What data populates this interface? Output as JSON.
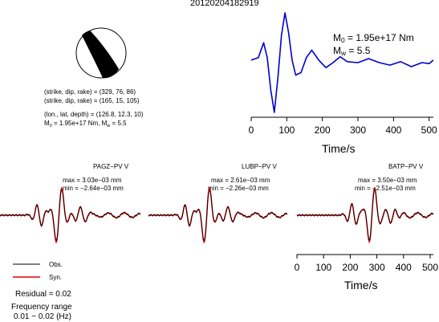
{
  "figure": {
    "title": "20120204182919",
    "mechanism": {
      "line1": "(strike, dip, rake) = (329, 76, 86)",
      "line2": "(strike, dip, rake) = (165, 15, 105)",
      "line3": "(lon., lat, depth) = (126.8, 12.3, 10)",
      "line4": "M",
      "line4_sub": "0",
      "line4_rest": " = 1.95e+17 Nm, M",
      "line4_sub2": "w",
      "line4_end": " = 5.5"
    },
    "stf_label": {
      "mo_prefix": "M",
      "mo_sub": "0",
      "mo_value": " = 1.95e+17 Nm",
      "mw_prefix": "M",
      "mw_sub": "w",
      "mw_value": " = 5.5"
    },
    "stations": [
      {
        "name": "PAGZ−PV V",
        "max": "max = 3.03e−03 mm",
        "min": "min = −2.64e−03 mm"
      },
      {
        "name": "LUBP−PV V",
        "max": "max = 2.61e−03 mm",
        "min": "min = −2.26e−03 mm"
      },
      {
        "name": "BATP−PV V",
        "max": "max = 3.50e−03 mm",
        "min": "min = −2.51e−03 mm"
      }
    ],
    "legend": {
      "obs": "Obs.",
      "syn": "Syn."
    },
    "residual": "Residual = 0.02",
    "freq_label": "Frequency range",
    "freq_value": "0.01 − 0.02 (Hz)",
    "colors": {
      "syn": "#dd0000",
      "obs": "#000000",
      "stf": "#0000cc",
      "beachball": "#000000"
    }
  },
  "chart_data": [
    {
      "type": "line",
      "name_hint": "source-time-function",
      "xlabel": "Time/s",
      "ylabel": "",
      "xlim": [
        0,
        512
      ],
      "xticks": [
        0,
        100,
        200,
        300,
        400,
        500
      ],
      "x": [
        0,
        20,
        35,
        45,
        55,
        65,
        75,
        85,
        95,
        105,
        115,
        125,
        140,
        155,
        170,
        190,
        210,
        230,
        250,
        270,
        300,
        330,
        360,
        390,
        420,
        450,
        480,
        500,
        512
      ],
      "y": [
        0.05,
        0.1,
        0.4,
        0.1,
        -0.55,
        -1.0,
        -0.3,
        0.55,
        1.0,
        0.6,
        0.05,
        -0.25,
        -0.2,
        0.1,
        0.25,
        0.05,
        -0.1,
        0.0,
        0.12,
        0.02,
        0.0,
        0.08,
        0.0,
        -0.05,
        0.02,
        -0.08,
        0.0,
        -0.02,
        0.05
      ]
    },
    {
      "type": "line",
      "name_hint": "waveform-comparison",
      "xlabel": "Time/s",
      "ylabel": "",
      "xlim": [
        0,
        512
      ],
      "xticks": [
        0,
        100,
        200,
        300,
        400,
        500
      ],
      "series": [
        {
          "name": "Obs."
        },
        {
          "name": "Syn."
        }
      ]
    }
  ]
}
